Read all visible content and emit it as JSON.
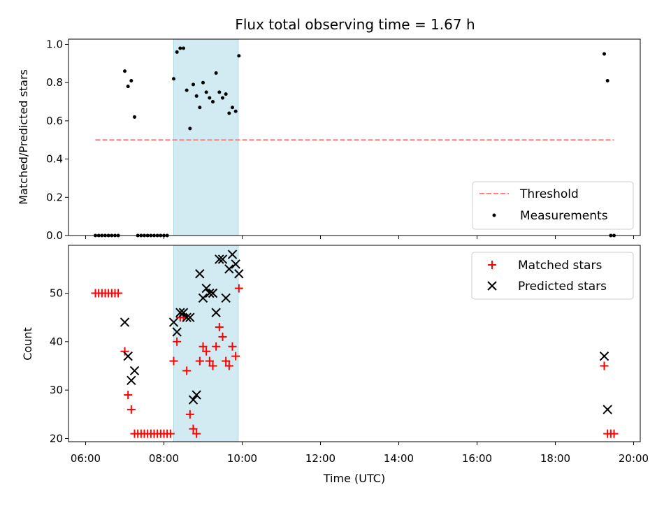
{
  "chart_data": [
    {
      "type": "scatter",
      "title": "Flux total observing time = 1.67 h",
      "xlabel": "",
      "ylabel": "Matched/Predicted stars",
      "xlim": [
        "06:00",
        "20:00"
      ],
      "ylim": [
        0,
        1.0
      ],
      "yticks": [
        "0.0",
        "0.2",
        "0.4",
        "0.6",
        "0.8",
        "1.0"
      ],
      "shaded_interval": [
        "08:15",
        "09:54"
      ],
      "legend_placement": "lower-right",
      "grid": false,
      "series": [
        {
          "name": "Threshold",
          "kind": "dashed-line",
          "color": "#ff7f7f",
          "x": [
            "06:15",
            "19:30"
          ],
          "y": [
            0.5,
            0.5
          ]
        },
        {
          "name": "Measurements",
          "kind": "dot",
          "color": "#000000",
          "points": [
            [
              "06:15",
              0.0
            ],
            [
              "06:20",
              0.0
            ],
            [
              "06:25",
              0.0
            ],
            [
              "06:30",
              0.0
            ],
            [
              "06:35",
              0.0
            ],
            [
              "06:40",
              0.0
            ],
            [
              "06:45",
              0.0
            ],
            [
              "06:50",
              0.0
            ],
            [
              "07:00",
              0.86
            ],
            [
              "07:05",
              0.78
            ],
            [
              "07:10",
              0.81
            ],
            [
              "07:15",
              0.62
            ],
            [
              "07:20",
              0.0
            ],
            [
              "07:25",
              0.0
            ],
            [
              "07:30",
              0.0
            ],
            [
              "07:35",
              0.0
            ],
            [
              "07:40",
              0.0
            ],
            [
              "07:45",
              0.0
            ],
            [
              "07:50",
              0.0
            ],
            [
              "07:55",
              0.0
            ],
            [
              "08:00",
              0.0
            ],
            [
              "08:05",
              0.0
            ],
            [
              "08:15",
              0.82
            ],
            [
              "08:20",
              0.96
            ],
            [
              "08:25",
              0.98
            ],
            [
              "08:30",
              0.98
            ],
            [
              "08:35",
              0.76
            ],
            [
              "08:40",
              0.56
            ],
            [
              "08:45",
              0.79
            ],
            [
              "08:50",
              0.73
            ],
            [
              "08:55",
              0.67
            ],
            [
              "09:00",
              0.8
            ],
            [
              "09:05",
              0.75
            ],
            [
              "09:10",
              0.72
            ],
            [
              "09:15",
              0.7
            ],
            [
              "09:20",
              0.85
            ],
            [
              "09:25",
              0.75
            ],
            [
              "09:30",
              0.72
            ],
            [
              "09:35",
              0.74
            ],
            [
              "09:40",
              0.64
            ],
            [
              "09:45",
              0.67
            ],
            [
              "09:50",
              0.65
            ],
            [
              "09:55",
              0.94
            ],
            [
              "19:15",
              0.95
            ],
            [
              "19:20",
              0.81
            ],
            [
              "19:25",
              0.0
            ],
            [
              "19:30",
              0.0
            ]
          ]
        }
      ]
    },
    {
      "type": "scatter",
      "title": "",
      "xlabel": "Time (UTC)",
      "ylabel": "Count",
      "xlim": [
        "06:00",
        "20:00"
      ],
      "ylim": [
        19.5,
        59
      ],
      "xticks": [
        "06:00",
        "08:00",
        "10:00",
        "12:00",
        "14:00",
        "16:00",
        "18:00",
        "20:00"
      ],
      "yticks": [
        20,
        30,
        40,
        50
      ],
      "shaded_interval": [
        "08:15",
        "09:54"
      ],
      "legend_placement": "upper-right",
      "grid": false,
      "series": [
        {
          "name": "Matched stars",
          "kind": "plus",
          "color": "#ff0000",
          "points": [
            [
              "06:15",
              50
            ],
            [
              "06:20",
              50
            ],
            [
              "06:25",
              50
            ],
            [
              "06:30",
              50
            ],
            [
              "06:35",
              50
            ],
            [
              "06:40",
              50
            ],
            [
              "06:45",
              50
            ],
            [
              "06:50",
              50
            ],
            [
              "07:00",
              38
            ],
            [
              "07:05",
              29
            ],
            [
              "07:10",
              26
            ],
            [
              "07:15",
              21
            ],
            [
              "07:20",
              21
            ],
            [
              "07:25",
              21
            ],
            [
              "07:30",
              21
            ],
            [
              "07:35",
              21
            ],
            [
              "07:40",
              21
            ],
            [
              "07:45",
              21
            ],
            [
              "07:50",
              21
            ],
            [
              "07:55",
              21
            ],
            [
              "08:00",
              21
            ],
            [
              "08:05",
              21
            ],
            [
              "08:10",
              21
            ],
            [
              "08:15",
              36
            ],
            [
              "08:20",
              40
            ],
            [
              "08:25",
              45
            ],
            [
              "08:30",
              45
            ],
            [
              "08:35",
              34
            ],
            [
              "08:40",
              25
            ],
            [
              "08:45",
              22
            ],
            [
              "08:50",
              21
            ],
            [
              "08:55",
              36
            ],
            [
              "09:00",
              39
            ],
            [
              "09:05",
              38
            ],
            [
              "09:10",
              36
            ],
            [
              "09:15",
              35
            ],
            [
              "09:20",
              39
            ],
            [
              "09:25",
              43
            ],
            [
              "09:30",
              41
            ],
            [
              "09:35",
              36
            ],
            [
              "09:40",
              35
            ],
            [
              "09:45",
              39
            ],
            [
              "09:50",
              37
            ],
            [
              "09:55",
              51
            ],
            [
              "19:15",
              35
            ],
            [
              "19:20",
              21
            ],
            [
              "19:25",
              21
            ],
            [
              "19:30",
              21
            ]
          ]
        },
        {
          "name": "Predicted stars",
          "kind": "x",
          "color": "#000000",
          "points": [
            [
              "07:00",
              44
            ],
            [
              "07:05",
              37
            ],
            [
              "07:10",
              32
            ],
            [
              "07:15",
              34
            ],
            [
              "08:15",
              44
            ],
            [
              "08:20",
              42
            ],
            [
              "08:25",
              46
            ],
            [
              "08:30",
              46
            ],
            [
              "08:35",
              45
            ],
            [
              "08:40",
              45
            ],
            [
              "08:45",
              28
            ],
            [
              "08:50",
              29
            ],
            [
              "08:55",
              54
            ],
            [
              "09:00",
              49
            ],
            [
              "09:05",
              51
            ],
            [
              "09:10",
              50
            ],
            [
              "09:15",
              50
            ],
            [
              "09:20",
              46
            ],
            [
              "09:25",
              57
            ],
            [
              "09:30",
              57
            ],
            [
              "09:35",
              49
            ],
            [
              "09:40",
              55
            ],
            [
              "09:45",
              58
            ],
            [
              "09:50",
              56
            ],
            [
              "09:55",
              54
            ],
            [
              "19:15",
              37
            ],
            [
              "19:20",
              26
            ]
          ]
        }
      ]
    }
  ],
  "colors": {
    "shading": "#add8e6",
    "threshold": "#ff7f7f",
    "matched": "#ff0000",
    "predicted": "#000000",
    "measurements": "#000000"
  }
}
